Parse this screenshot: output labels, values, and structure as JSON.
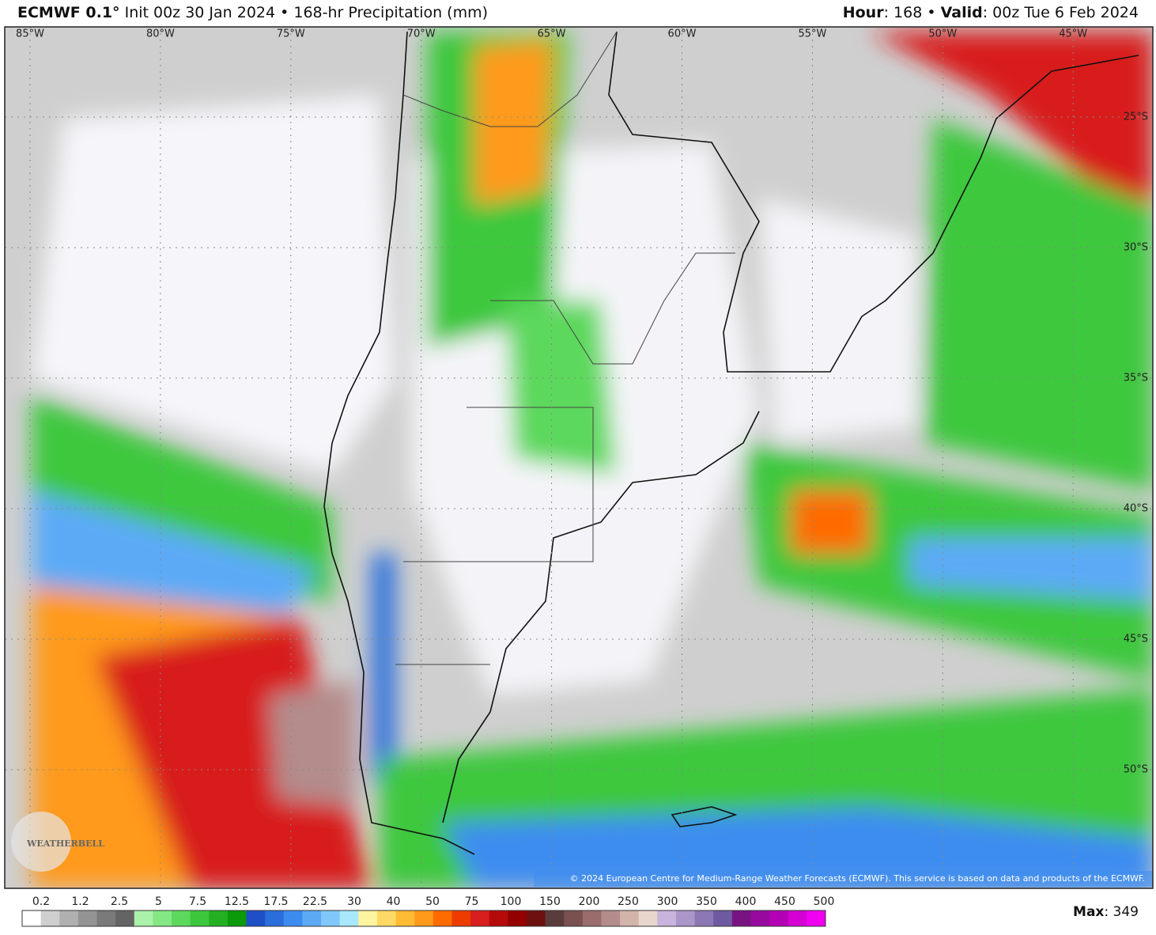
{
  "header": {
    "left": [
      {
        "text": "ECMWF 0.1°",
        "bold": true
      },
      {
        "text": " Init 00z 30 Jan 2024 • 168-hr Precipitation (mm)",
        "bold": false
      }
    ],
    "right": [
      {
        "text": "Hour",
        "bold": true
      },
      {
        "text": ": 168 • ",
        "bold": false
      },
      {
        "text": "Valid",
        "bold": true
      },
      {
        "text": ": 00z Tue 6 Feb 2024",
        "bold": false
      }
    ]
  },
  "map": {
    "longitude_labels": [
      "85°W",
      "80°W",
      "75°W",
      "70°W",
      "65°W",
      "60°W",
      "55°W",
      "50°W",
      "45°W"
    ],
    "latitude_labels": [
      "25°S",
      "30°S",
      "35°S",
      "40°S",
      "45°S",
      "50°S"
    ],
    "logo": "WEATHERBELL",
    "copyright": "© 2024 European Centre for Medium-Range Weather Forecasts (ECMWF). This service is based on data and products of the ECMWF."
  },
  "colorbar": {
    "labels": [
      "0.2",
      "1.2",
      "2.5",
      "5",
      "7.5",
      "12.5",
      "17.5",
      "22.5",
      "30",
      "40",
      "50",
      "75",
      "100",
      "150",
      "200",
      "250",
      "300",
      "350",
      "400",
      "450",
      "500"
    ],
    "colors": [
      "#ffffff",
      "#cfcfcf",
      "#b0b0b0",
      "#949494",
      "#7a7a7a",
      "#646464",
      "#aaf2aa",
      "#84e884",
      "#5cd85c",
      "#3cc83c",
      "#22b022",
      "#0a9a0a",
      "#1e4fc6",
      "#2a6edc",
      "#3c8cf0",
      "#5caaf6",
      "#80c8fa",
      "#a8e8fa",
      "#fff5a0",
      "#ffd966",
      "#ffbb33",
      "#ff9a1a",
      "#ff6a00",
      "#ee3c00",
      "#d81e1e",
      "#b40a0a",
      "#940000",
      "#6c1010",
      "#5a3c3c",
      "#7a5050",
      "#9a6c6c",
      "#b48c8c",
      "#d2b4aa",
      "#e8d6cc",
      "#c8b4dc",
      "#aa96c8",
      "#8c78b4",
      "#6e5aa0",
      "#781482",
      "#960aa0",
      "#b400b4",
      "#d400d4",
      "#f000f0"
    ]
  },
  "max": [
    {
      "text": "Max",
      "bold": true
    },
    {
      "text": ": 349",
      "bold": false
    }
  ]
}
